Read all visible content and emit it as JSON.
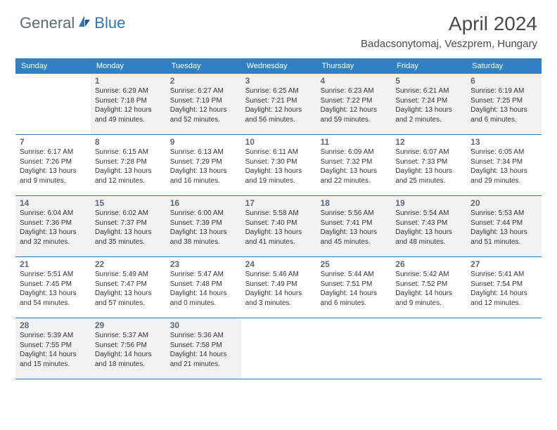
{
  "colors": {
    "header_bg": "#2f81c3",
    "header_text": "#ffffff",
    "shade_bg": "#f2f2f2",
    "border": "#2f76b5",
    "logo_gray": "#5a6a7a",
    "logo_blue": "#2f76b5",
    "title_color": "#4a4a4a"
  },
  "logo": {
    "part1": "General",
    "part2": "Blue"
  },
  "title": "April 2024",
  "location": "Badacsonytomaj, Veszprem, Hungary",
  "day_names": [
    "Sunday",
    "Monday",
    "Tuesday",
    "Wednesday",
    "Thursday",
    "Friday",
    "Saturday"
  ],
  "weeks": [
    [
      {
        "day": "",
        "shaded": false
      },
      {
        "day": "1",
        "shaded": true,
        "sunrise": "Sunrise: 6:29 AM",
        "sunset": "Sunset: 7:18 PM",
        "daylight": "Daylight: 12 hours and 49 minutes."
      },
      {
        "day": "2",
        "shaded": true,
        "sunrise": "Sunrise: 6:27 AM",
        "sunset": "Sunset: 7:19 PM",
        "daylight": "Daylight: 12 hours and 52 minutes."
      },
      {
        "day": "3",
        "shaded": true,
        "sunrise": "Sunrise: 6:25 AM",
        "sunset": "Sunset: 7:21 PM",
        "daylight": "Daylight: 12 hours and 56 minutes."
      },
      {
        "day": "4",
        "shaded": true,
        "sunrise": "Sunrise: 6:23 AM",
        "sunset": "Sunset: 7:22 PM",
        "daylight": "Daylight: 12 hours and 59 minutes."
      },
      {
        "day": "5",
        "shaded": true,
        "sunrise": "Sunrise: 6:21 AM",
        "sunset": "Sunset: 7:24 PM",
        "daylight": "Daylight: 13 hours and 2 minutes."
      },
      {
        "day": "6",
        "shaded": true,
        "sunrise": "Sunrise: 6:19 AM",
        "sunset": "Sunset: 7:25 PM",
        "daylight": "Daylight: 13 hours and 6 minutes."
      }
    ],
    [
      {
        "day": "7",
        "shaded": false,
        "sunrise": "Sunrise: 6:17 AM",
        "sunset": "Sunset: 7:26 PM",
        "daylight": "Daylight: 13 hours and 9 minutes."
      },
      {
        "day": "8",
        "shaded": false,
        "sunrise": "Sunrise: 6:15 AM",
        "sunset": "Sunset: 7:28 PM",
        "daylight": "Daylight: 13 hours and 12 minutes."
      },
      {
        "day": "9",
        "shaded": false,
        "sunrise": "Sunrise: 6:13 AM",
        "sunset": "Sunset: 7:29 PM",
        "daylight": "Daylight: 13 hours and 16 minutes."
      },
      {
        "day": "10",
        "shaded": false,
        "sunrise": "Sunrise: 6:11 AM",
        "sunset": "Sunset: 7:30 PM",
        "daylight": "Daylight: 13 hours and 19 minutes."
      },
      {
        "day": "11",
        "shaded": false,
        "sunrise": "Sunrise: 6:09 AM",
        "sunset": "Sunset: 7:32 PM",
        "daylight": "Daylight: 13 hours and 22 minutes."
      },
      {
        "day": "12",
        "shaded": false,
        "sunrise": "Sunrise: 6:07 AM",
        "sunset": "Sunset: 7:33 PM",
        "daylight": "Daylight: 13 hours and 25 minutes."
      },
      {
        "day": "13",
        "shaded": false,
        "sunrise": "Sunrise: 6:05 AM",
        "sunset": "Sunset: 7:34 PM",
        "daylight": "Daylight: 13 hours and 29 minutes."
      }
    ],
    [
      {
        "day": "14",
        "shaded": true,
        "sunrise": "Sunrise: 6:04 AM",
        "sunset": "Sunset: 7:36 PM",
        "daylight": "Daylight: 13 hours and 32 minutes."
      },
      {
        "day": "15",
        "shaded": true,
        "sunrise": "Sunrise: 6:02 AM",
        "sunset": "Sunset: 7:37 PM",
        "daylight": "Daylight: 13 hours and 35 minutes."
      },
      {
        "day": "16",
        "shaded": true,
        "sunrise": "Sunrise: 6:00 AM",
        "sunset": "Sunset: 7:39 PM",
        "daylight": "Daylight: 13 hours and 38 minutes."
      },
      {
        "day": "17",
        "shaded": true,
        "sunrise": "Sunrise: 5:58 AM",
        "sunset": "Sunset: 7:40 PM",
        "daylight": "Daylight: 13 hours and 41 minutes."
      },
      {
        "day": "18",
        "shaded": true,
        "sunrise": "Sunrise: 5:56 AM",
        "sunset": "Sunset: 7:41 PM",
        "daylight": "Daylight: 13 hours and 45 minutes."
      },
      {
        "day": "19",
        "shaded": true,
        "sunrise": "Sunrise: 5:54 AM",
        "sunset": "Sunset: 7:43 PM",
        "daylight": "Daylight: 13 hours and 48 minutes."
      },
      {
        "day": "20",
        "shaded": true,
        "sunrise": "Sunrise: 5:53 AM",
        "sunset": "Sunset: 7:44 PM",
        "daylight": "Daylight: 13 hours and 51 minutes."
      }
    ],
    [
      {
        "day": "21",
        "shaded": false,
        "sunrise": "Sunrise: 5:51 AM",
        "sunset": "Sunset: 7:45 PM",
        "daylight": "Daylight: 13 hours and 54 minutes."
      },
      {
        "day": "22",
        "shaded": false,
        "sunrise": "Sunrise: 5:49 AM",
        "sunset": "Sunset: 7:47 PM",
        "daylight": "Daylight: 13 hours and 57 minutes."
      },
      {
        "day": "23",
        "shaded": false,
        "sunrise": "Sunrise: 5:47 AM",
        "sunset": "Sunset: 7:48 PM",
        "daylight": "Daylight: 14 hours and 0 minutes."
      },
      {
        "day": "24",
        "shaded": false,
        "sunrise": "Sunrise: 5:46 AM",
        "sunset": "Sunset: 7:49 PM",
        "daylight": "Daylight: 14 hours and 3 minutes."
      },
      {
        "day": "25",
        "shaded": false,
        "sunrise": "Sunrise: 5:44 AM",
        "sunset": "Sunset: 7:51 PM",
        "daylight": "Daylight: 14 hours and 6 minutes."
      },
      {
        "day": "26",
        "shaded": false,
        "sunrise": "Sunrise: 5:42 AM",
        "sunset": "Sunset: 7:52 PM",
        "daylight": "Daylight: 14 hours and 9 minutes."
      },
      {
        "day": "27",
        "shaded": false,
        "sunrise": "Sunrise: 5:41 AM",
        "sunset": "Sunset: 7:54 PM",
        "daylight": "Daylight: 14 hours and 12 minutes."
      }
    ],
    [
      {
        "day": "28",
        "shaded": true,
        "sunrise": "Sunrise: 5:39 AM",
        "sunset": "Sunset: 7:55 PM",
        "daylight": "Daylight: 14 hours and 15 minutes."
      },
      {
        "day": "29",
        "shaded": true,
        "sunrise": "Sunrise: 5:37 AM",
        "sunset": "Sunset: 7:56 PM",
        "daylight": "Daylight: 14 hours and 18 minutes."
      },
      {
        "day": "30",
        "shaded": true,
        "sunrise": "Sunrise: 5:36 AM",
        "sunset": "Sunset: 7:58 PM",
        "daylight": "Daylight: 14 hours and 21 minutes."
      },
      {
        "day": "",
        "shaded": false
      },
      {
        "day": "",
        "shaded": false
      },
      {
        "day": "",
        "shaded": false
      },
      {
        "day": "",
        "shaded": false
      }
    ]
  ]
}
